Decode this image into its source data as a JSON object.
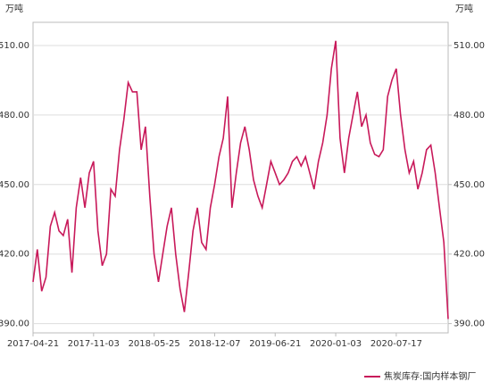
{
  "chart_data": {
    "type": "line",
    "y_unit": "万吨",
    "y2_unit": "万吨",
    "categories": [
      "2017-04-21",
      null,
      null,
      null,
      null,
      null,
      null,
      null,
      null,
      null,
      null,
      null,
      null,
      null,
      "2017-11-03",
      null,
      null,
      null,
      null,
      null,
      null,
      null,
      null,
      null,
      null,
      null,
      null,
      null,
      "2018-05-25",
      null,
      null,
      null,
      null,
      null,
      null,
      null,
      null,
      null,
      null,
      null,
      null,
      null,
      "2018-12-07",
      null,
      null,
      null,
      null,
      null,
      null,
      null,
      null,
      null,
      null,
      null,
      null,
      null,
      "2019-06-21",
      null,
      null,
      null,
      null,
      null,
      null,
      null,
      null,
      null,
      null,
      null,
      null,
      null,
      "2020-01-03",
      null,
      null,
      null,
      null,
      null,
      null,
      null,
      null,
      null,
      null,
      null,
      null,
      null,
      "2020-07-17",
      null,
      null,
      null,
      null,
      null,
      null,
      null,
      null,
      null,
      null,
      null,
      null
    ],
    "series": [
      {
        "name": "焦炭库存:国内样本钢厂",
        "color": "#c8195a",
        "values": [
          408,
          422,
          404,
          410,
          432,
          438,
          430,
          428,
          435,
          412,
          440,
          453,
          440,
          455,
          460,
          430,
          415,
          420,
          448,
          445,
          465,
          478,
          494,
          490,
          490,
          465,
          475,
          445,
          420,
          408,
          420,
          432,
          440,
          420,
          405,
          395,
          412,
          430,
          440,
          425,
          422,
          440,
          450,
          462,
          470,
          488,
          440,
          455,
          468,
          475,
          465,
          452,
          445,
          440,
          450,
          460,
          455,
          450,
          452,
          455,
          460,
          462,
          458,
          462,
          455,
          448,
          460,
          468,
          480,
          500,
          512,
          470,
          455,
          470,
          480,
          490,
          475,
          480,
          468,
          463,
          462,
          465,
          488,
          495,
          500,
          480,
          465,
          455,
          460,
          448,
          455,
          465,
          467,
          455,
          440,
          425,
          392
        ]
      }
    ],
    "ylim": [
      386,
      520
    ],
    "yticks": [
      {
        "value": 390,
        "label": "390.00"
      },
      {
        "value": 420,
        "label": "420.00"
      },
      {
        "value": 450,
        "label": "450.00"
      },
      {
        "value": 480,
        "label": "480.00"
      },
      {
        "value": 510,
        "label": "510.00"
      }
    ],
    "y2lim": [
      386,
      520
    ],
    "y2ticks": [
      {
        "value": 390,
        "label": "390.00"
      },
      {
        "value": 420,
        "label": "420.00"
      },
      {
        "value": 450,
        "label": "450.00"
      },
      {
        "value": 480,
        "label": "480.00"
      },
      {
        "value": 510,
        "label": "510.00"
      }
    ],
    "grid": true,
    "legend": "bottom-right"
  }
}
